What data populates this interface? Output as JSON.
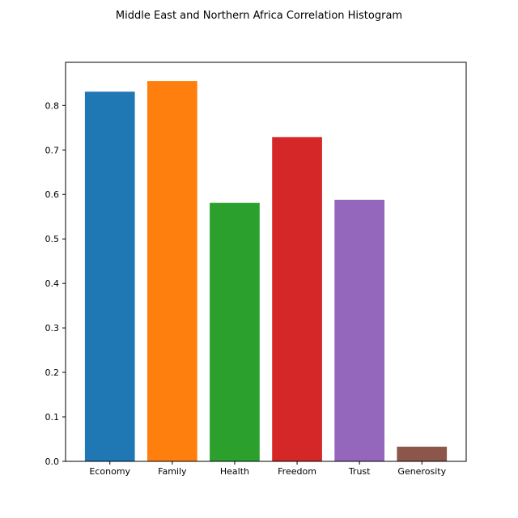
{
  "chart_data": {
    "type": "bar",
    "title": "Middle East and Northern Africa Correlation Histogram",
    "xlabel": "",
    "ylabel": "",
    "categories": [
      "Economy",
      "Family",
      "Health",
      "Freedom",
      "Trust",
      "Generosity"
    ],
    "values": [
      0.831,
      0.855,
      0.581,
      0.729,
      0.588,
      0.033
    ],
    "colors": [
      "#1f77b4",
      "#ff7f0e",
      "#2ca02c",
      "#d62728",
      "#9467bd",
      "#8c564b"
    ],
    "ylim": [
      0,
      0.897
    ],
    "yticks": [
      0.0,
      0.1,
      0.2,
      0.3,
      0.4,
      0.5,
      0.6,
      0.7,
      0.8
    ],
    "ytick_labels": [
      "0.0",
      "0.1",
      "0.2",
      "0.3",
      "0.4",
      "0.5",
      "0.6",
      "0.7",
      "0.8"
    ],
    "grid": false,
    "legend": "none"
  }
}
